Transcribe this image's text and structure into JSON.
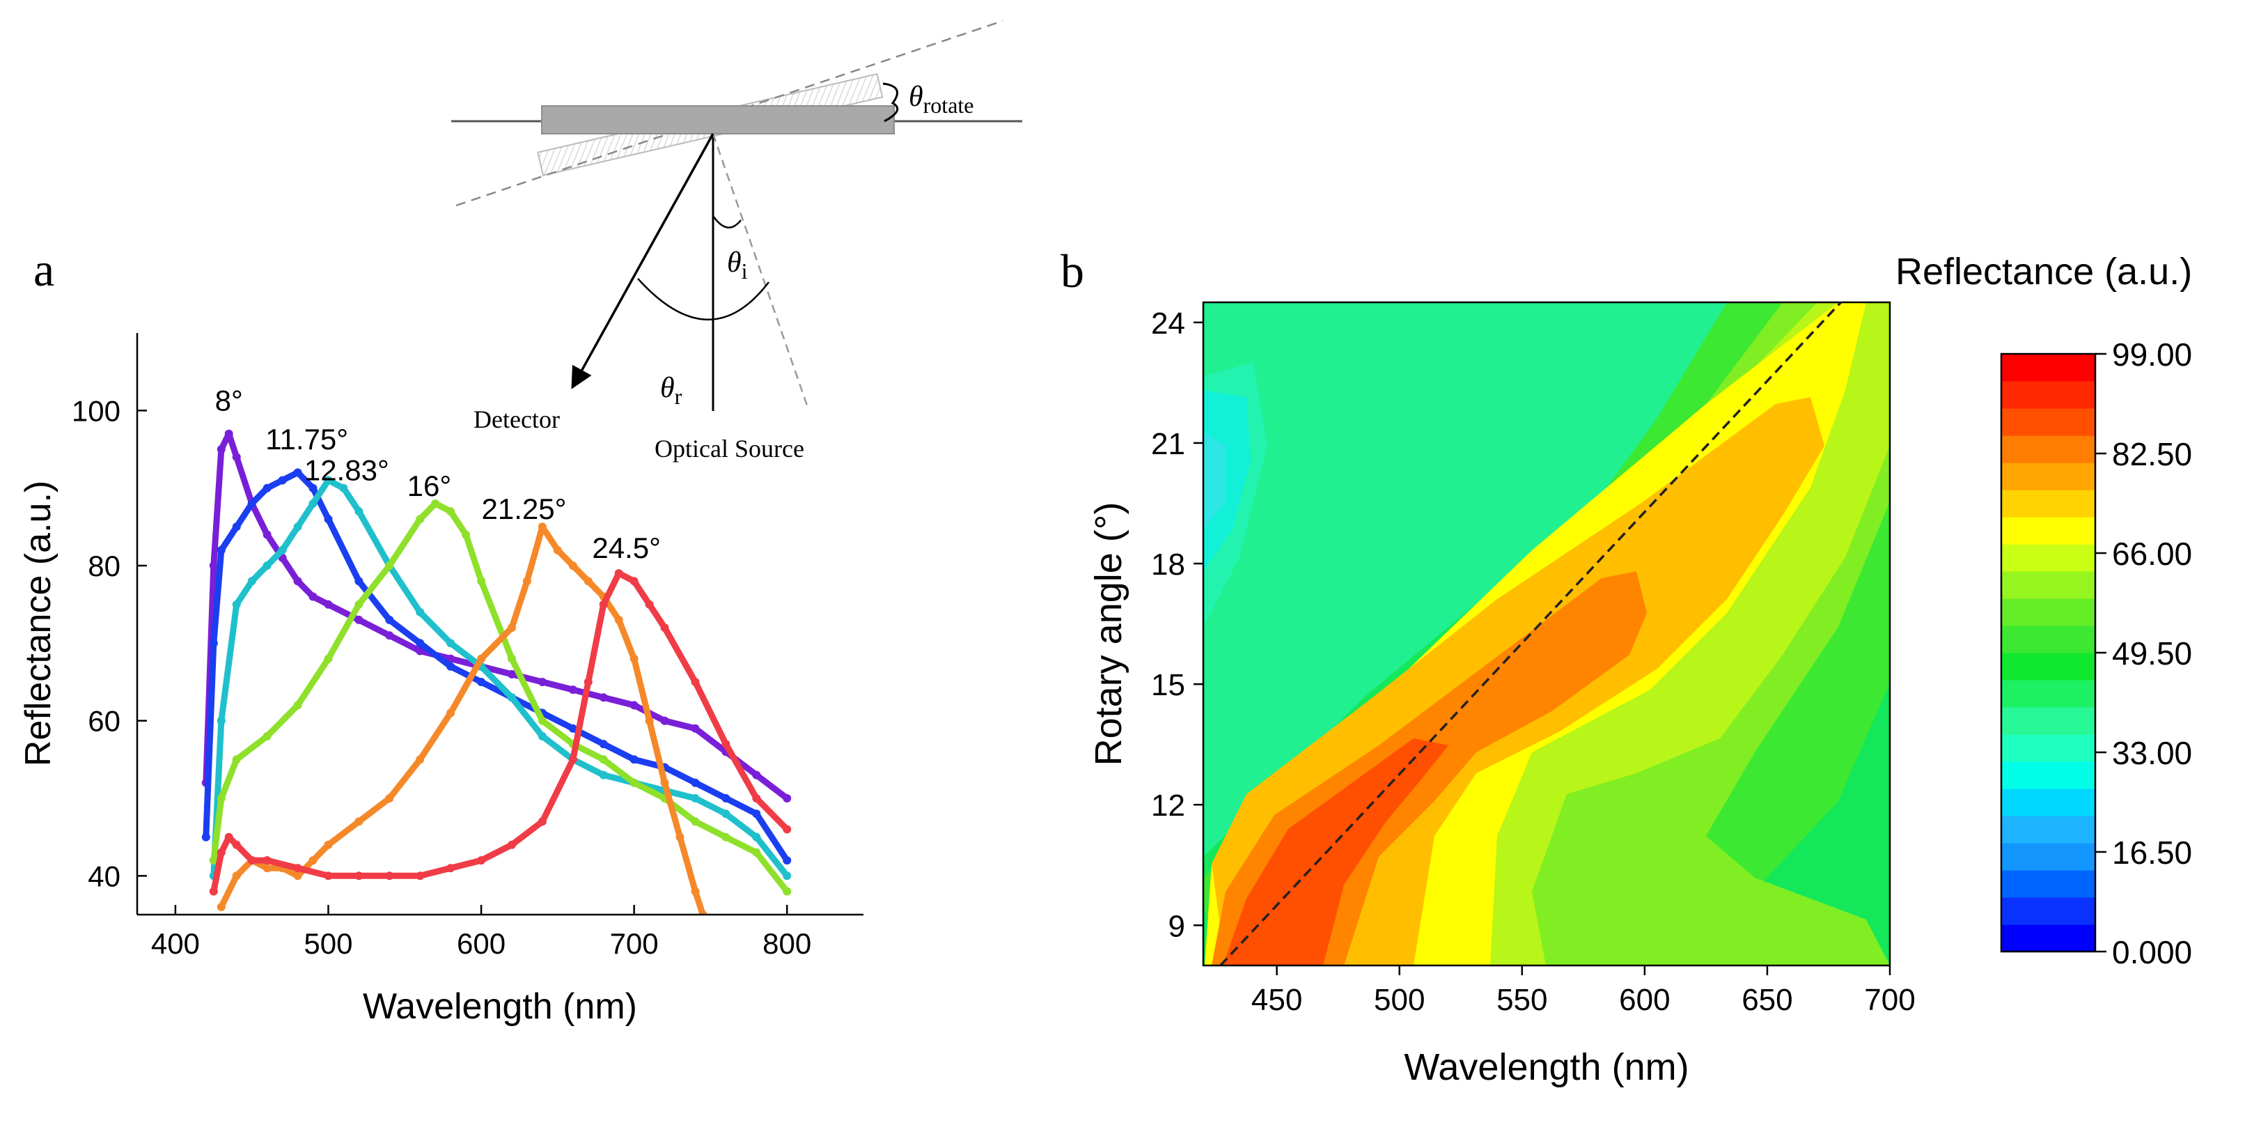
{
  "schematic": {
    "theta_rotate_symbol": "θ",
    "theta_rotate_sub": "rotate",
    "theta_i_symbol": "θ",
    "theta_i_sub": "i",
    "theta_r_symbol": "θ",
    "theta_r_sub": "r",
    "detector_label": "Detector",
    "source_label": "Optical Source"
  },
  "chart_data": [
    {
      "panel_label": "a",
      "type": "line",
      "xlabel": "Wavelength (nm)",
      "ylabel": "Reflectance (a.u.)",
      "xlim": [
        375,
        850
      ],
      "ylim": [
        35,
        110
      ],
      "xticks": [
        400,
        500,
        600,
        700,
        800
      ],
      "yticks": [
        40,
        60,
        80,
        100
      ],
      "series": [
        {
          "name": "8°",
          "color": "#7a1fd8",
          "label_at": [
            435,
            100
          ],
          "x": [
            420,
            425,
            430,
            435,
            440,
            450,
            460,
            470,
            480,
            490,
            500,
            520,
            540,
            560,
            580,
            600,
            620,
            640,
            660,
            680,
            700,
            720,
            740,
            760,
            780,
            800
          ],
          "y": [
            52,
            80,
            95,
            97,
            94,
            88,
            84,
            81,
            78,
            76,
            75,
            73,
            71,
            69,
            68,
            67,
            66,
            65,
            64,
            63,
            62,
            60,
            59,
            56,
            53,
            50
          ]
        },
        {
          "name": "11.75°",
          "color": "#1a3ef0",
          "label_at": [
            486,
            95
          ],
          "x": [
            420,
            425,
            430,
            440,
            450,
            460,
            470,
            480,
            490,
            500,
            520,
            540,
            560,
            580,
            600,
            620,
            640,
            660,
            680,
            700,
            720,
            740,
            760,
            780,
            800
          ],
          "y": [
            45,
            70,
            82,
            85,
            88,
            90,
            91,
            92,
            90,
            86,
            78,
            73,
            70,
            67,
            65,
            63,
            61,
            59,
            57,
            55,
            54,
            52,
            50,
            48,
            42
          ]
        },
        {
          "name": "12.83°",
          "color": "#1fc0cc",
          "label_at": [
            512,
            91
          ],
          "x": [
            425,
            430,
            440,
            450,
            460,
            470,
            480,
            490,
            500,
            510,
            520,
            540,
            560,
            580,
            600,
            620,
            640,
            660,
            680,
            700,
            720,
            740,
            760,
            780,
            800
          ],
          "y": [
            40,
            60,
            75,
            78,
            80,
            82,
            85,
            88,
            91,
            90,
            87,
            80,
            74,
            70,
            67,
            63,
            58,
            55,
            53,
            52,
            51,
            50,
            48,
            45,
            40
          ]
        },
        {
          "name": "16°",
          "color": "#8fe02a",
          "label_at": [
            566,
            89
          ],
          "x": [
            425,
            430,
            440,
            460,
            480,
            500,
            520,
            540,
            560,
            570,
            580,
            590,
            600,
            620,
            640,
            660,
            680,
            700,
            720,
            740,
            760,
            780,
            800
          ],
          "y": [
            42,
            50,
            55,
            58,
            62,
            68,
            75,
            80,
            86,
            88,
            87,
            84,
            78,
            68,
            60,
            57,
            55,
            52,
            50,
            47,
            45,
            43,
            38
          ]
        },
        {
          "name": "21.25°",
          "color": "#f5892a",
          "label_at": [
            628,
            86
          ],
          "x": [
            430,
            440,
            450,
            460,
            470,
            480,
            490,
            500,
            520,
            540,
            560,
            580,
            600,
            620,
            630,
            640,
            650,
            660,
            670,
            680,
            690,
            700,
            710,
            720,
            730,
            740,
            745
          ],
          "y": [
            36,
            40,
            42,
            41,
            41,
            40,
            42,
            44,
            47,
            50,
            55,
            61,
            68,
            72,
            78,
            85,
            82,
            80,
            78,
            76,
            73,
            68,
            60,
            52,
            45,
            38,
            35
          ]
        },
        {
          "name": "24.5°",
          "color": "#f03c46",
          "label_at": [
            695,
            81
          ],
          "x": [
            425,
            430,
            435,
            440,
            450,
            460,
            480,
            500,
            520,
            540,
            560,
            580,
            600,
            620,
            640,
            660,
            670,
            680,
            690,
            700,
            710,
            720,
            740,
            760,
            780,
            800
          ],
          "y": [
            38,
            43,
            45,
            44,
            42,
            42,
            41,
            40,
            40,
            40,
            40,
            41,
            42,
            44,
            47,
            55,
            65,
            75,
            79,
            78,
            75,
            72,
            65,
            57,
            50,
            46
          ]
        }
      ]
    },
    {
      "panel_label": "b",
      "type": "heatmap",
      "xlabel": "Wavelength (nm)",
      "ylabel": "Rotary angle (°)",
      "xlim": [
        420,
        700
      ],
      "ylim": [
        8,
        24.5
      ],
      "xticks": [
        450,
        500,
        550,
        600,
        650,
        700
      ],
      "yticks": [
        9,
        12,
        15,
        18,
        21,
        24
      ],
      "colorbar_title": "Reflectance (a.u.)",
      "colorbar_range": [
        0,
        99
      ],
      "colorbar_ticks": [
        "99.00",
        "82.50",
        "66.00",
        "49.50",
        "33.00",
        "16.50",
        "0.000"
      ],
      "colorbar_levels": [
        "#0000ff",
        "#0a32ff",
        "#0064ff",
        "#1496ff",
        "#1eb4ff",
        "#00d8ff",
        "#00ffe6",
        "#1effc0",
        "#28f896",
        "#1ef064",
        "#10e830",
        "#3ce832",
        "#64ee28",
        "#96f51e",
        "#c8ff14",
        "#ffff00",
        "#ffd200",
        "#ffa500",
        "#ff7d00",
        "#ff5000",
        "#ff2800",
        "#ff0000"
      ],
      "ridge_line": {
        "x": [
          427,
          680
        ],
        "y": [
          8,
          24.5
        ]
      },
      "peak_note": "maximum reflectance follows the dashed diagonal from (430 nm, 8°) to (680 nm, 24.5°)"
    }
  ]
}
